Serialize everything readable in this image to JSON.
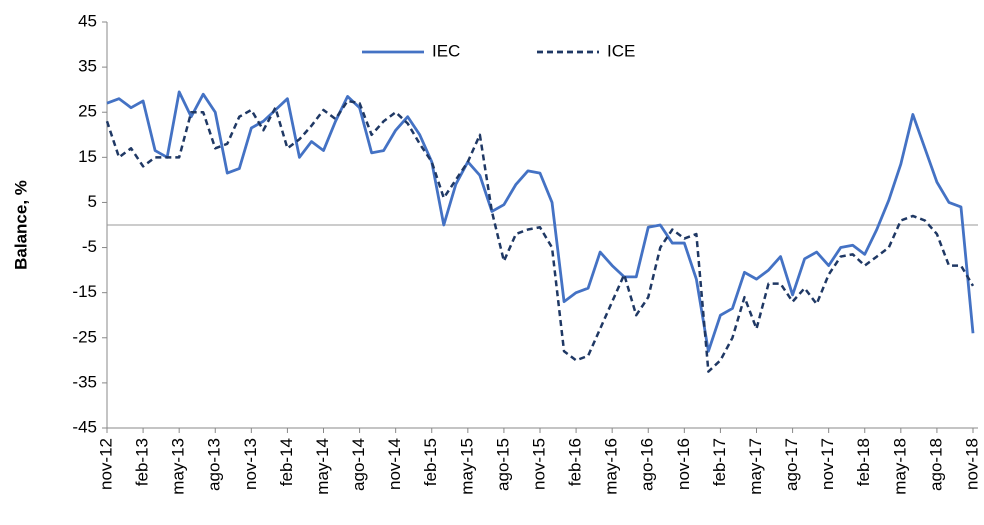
{
  "chart_data": {
    "type": "line",
    "y_label": "Balance, %",
    "categories": [
      "nov-12",
      null,
      null,
      "feb-13",
      null,
      null,
      "may-13",
      null,
      null,
      "ago-13",
      null,
      null,
      "nov-13",
      null,
      null,
      "feb-14",
      null,
      null,
      "may-14",
      null,
      null,
      "ago-14",
      null,
      null,
      "nov-14",
      null,
      null,
      "feb-15",
      null,
      null,
      "may-15",
      null,
      null,
      "ago-15",
      null,
      null,
      "nov-15",
      null,
      null,
      "feb-16",
      null,
      null,
      "may-16",
      null,
      null,
      "ago-16",
      null,
      null,
      "nov-16",
      null,
      null,
      "feb-17",
      null,
      null,
      "may-17",
      null,
      null,
      "ago-17",
      null,
      null,
      "nov-17",
      null,
      null,
      "feb-18",
      null,
      null,
      "may-18",
      null,
      null,
      "ago-18",
      null,
      null,
      "nov-18"
    ],
    "series": [
      {
        "name": "IEC",
        "color": "#4472c4",
        "style": "solid",
        "values": [
          27,
          28,
          26,
          27.5,
          16.5,
          15,
          29.5,
          24,
          29,
          25,
          11.5,
          12.5,
          21.5,
          23,
          25.5,
          28,
          15,
          18.5,
          16.5,
          23,
          28.5,
          26,
          16,
          16.5,
          21,
          24,
          20,
          14,
          0,
          9,
          14,
          11,
          3,
          4.5,
          9,
          12,
          11.5,
          5,
          -17,
          -15,
          -14,
          -6,
          -9,
          -11.5,
          -11.5,
          -0.5,
          0,
          -4,
          -4,
          -12,
          -28,
          -20,
          -18.5,
          -10.5,
          -12,
          -10,
          -7,
          -15.5,
          -7.5,
          -6,
          -9,
          -5,
          -4.5,
          -6.5,
          -1,
          5.5,
          13.5,
          24.5,
          17,
          9.5,
          5,
          4,
          -24
        ]
      },
      {
        "name": "ICE",
        "color": "#1f3864",
        "style": "dashed",
        "values": [
          23,
          15,
          17,
          13,
          15,
          15,
          15,
          25,
          25,
          17,
          18,
          24,
          25.5,
          21,
          26,
          17,
          19,
          22,
          25.5,
          23.5,
          27.5,
          27,
          20,
          23,
          25,
          22.5,
          18,
          14,
          6,
          10,
          14,
          20,
          3,
          -8,
          -2,
          -1,
          -0.5,
          -5,
          -28,
          -30,
          -29,
          -23,
          -17,
          -11,
          -20,
          -16,
          -5,
          -1,
          -3,
          -2,
          -32.5,
          -30,
          -25,
          -16,
          -23,
          -13,
          -13,
          -17,
          -14,
          -17.5,
          -11,
          -7,
          -6.5,
          -9,
          -7,
          -5,
          1,
          2,
          1,
          -2,
          -9,
          -9,
          -13.5
        ]
      }
    ],
    "ylim": [
      -45,
      45
    ],
    "yticks": [
      -45,
      -35,
      -25,
      -15,
      -5,
      5,
      15,
      25,
      35,
      45
    ],
    "zero_line": true,
    "legend": "top"
  }
}
